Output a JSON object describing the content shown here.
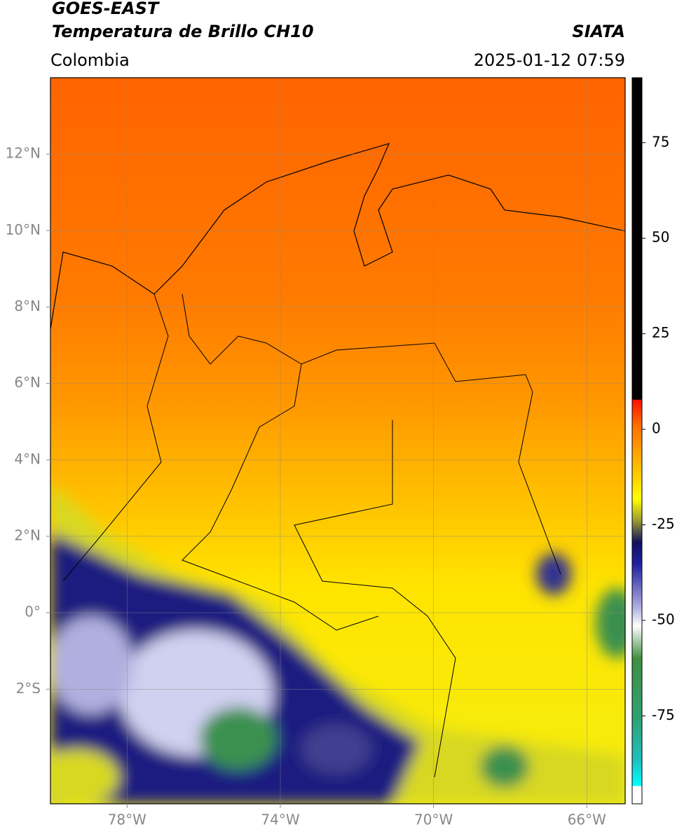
{
  "header": {
    "satellite": "GOES-EAST",
    "product": "Temperatura de Brillo CH10",
    "source": "SIATA",
    "region": "Colombia",
    "datetime": "2025-01-12 07:59"
  },
  "map": {
    "xlim": [
      -80,
      -65
    ],
    "ylim": [
      -5,
      14
    ],
    "xticks": [
      {
        "value": -78,
        "label": "78°W"
      },
      {
        "value": -74,
        "label": "74°W"
      },
      {
        "value": -70,
        "label": "70°W"
      },
      {
        "value": -66,
        "label": "66°W"
      }
    ],
    "yticks": [
      {
        "value": -2,
        "label": "2°S"
      },
      {
        "value": 0,
        "label": "0°"
      },
      {
        "value": 2,
        "label": "2°N"
      },
      {
        "value": 4,
        "label": "4°N"
      },
      {
        "value": 6,
        "label": "6°N"
      },
      {
        "value": 8,
        "label": "8°N"
      },
      {
        "value": 10,
        "label": "10°N"
      },
      {
        "value": 12,
        "label": "12°N"
      }
    ],
    "grid": true
  },
  "colorbar": {
    "lim": [
      -98,
      92
    ],
    "ticks": [
      -75,
      -50,
      -25,
      0,
      25,
      50,
      75
    ]
  }
}
